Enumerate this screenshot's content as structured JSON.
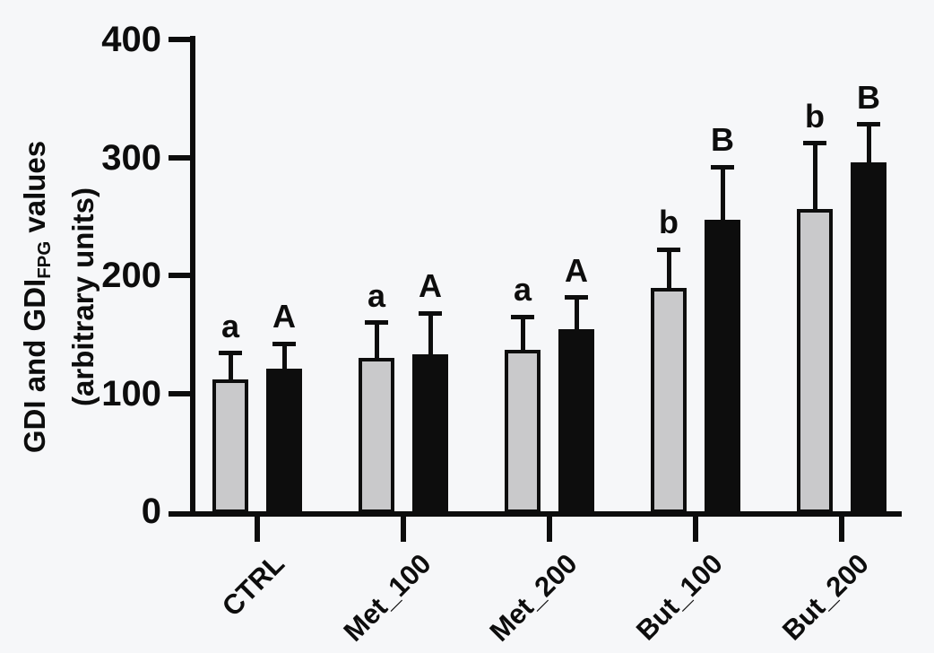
{
  "figure": {
    "background_color": "#f6f7f9",
    "axis_color": "#0d0d0d"
  },
  "chart_data": {
    "type": "bar",
    "title": "",
    "xlabel": "",
    "ylabel": {
      "pre": "GDI and GDI",
      "sub": "FPG",
      "post": " values",
      "line2": "(arbitrary units)"
    },
    "categories": [
      "CTRL",
      "Met_100",
      "Met_200",
      "But_100",
      "But_200"
    ],
    "yticks": [
      0,
      100,
      200,
      300,
      400
    ],
    "ylim": [
      0,
      400
    ],
    "grid": false,
    "legend": "none",
    "error_bars": "upper only",
    "series": [
      {
        "name": "GDI",
        "fill": "#c9c9cb",
        "border": "#0d0d0d",
        "values": [
          112,
          130,
          137,
          189,
          256
        ],
        "errors": [
          22,
          30,
          28,
          33,
          56
        ],
        "letters": [
          "a",
          "a",
          "a",
          "b",
          "b"
        ]
      },
      {
        "name": "GDI_FPG",
        "fill": "#0d0d0d",
        "border": "#0d0d0d",
        "values": [
          121,
          133,
          154,
          247,
          296
        ],
        "errors": [
          21,
          35,
          27,
          45,
          32
        ],
        "letters": [
          "A",
          "A",
          "A",
          "B",
          "B"
        ]
      }
    ]
  }
}
